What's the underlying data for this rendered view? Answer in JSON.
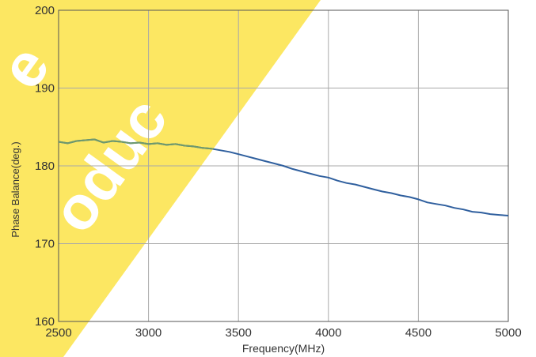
{
  "chart_data": {
    "type": "line",
    "title": "",
    "xlabel": "Frequency(MHz)",
    "ylabel": "Phase Balance(deg.)",
    "xlim": [
      2500,
      5000
    ],
    "ylim": [
      160,
      200
    ],
    "xticks": [
      2500,
      3000,
      3500,
      4000,
      4500,
      5000
    ],
    "yticks": [
      160,
      170,
      180,
      190,
      200
    ],
    "grid": true,
    "legend": "none",
    "series": [
      {
        "color": "#2f5f9e",
        "x": [
          2500,
          2550,
          2600,
          2650,
          2700,
          2750,
          2800,
          2850,
          2900,
          2950,
          3000,
          3050,
          3100,
          3150,
          3200,
          3250,
          3300,
          3350,
          3400,
          3450,
          3500,
          3550,
          3600,
          3650,
          3700,
          3750,
          3800,
          3850,
          3900,
          3950,
          4000,
          4050,
          4100,
          4150,
          4200,
          4250,
          4300,
          4350,
          4400,
          4450,
          4500,
          4550,
          4600,
          4650,
          4700,
          4750,
          4800,
          4850,
          4900,
          4950,
          5000
        ],
        "y": [
          183.1,
          182.9,
          183.2,
          183.3,
          183.4,
          183.0,
          183.2,
          183.1,
          182.9,
          183.0,
          182.8,
          182.9,
          182.7,
          182.8,
          182.6,
          182.5,
          182.3,
          182.2,
          182.0,
          181.8,
          181.5,
          181.2,
          180.9,
          180.6,
          180.3,
          180.0,
          179.6,
          179.3,
          179.0,
          178.7,
          178.5,
          178.1,
          177.8,
          177.6,
          177.3,
          177.0,
          176.7,
          176.5,
          176.2,
          176.0,
          175.7,
          175.3,
          175.1,
          174.9,
          174.6,
          174.4,
          174.1,
          174.0,
          173.8,
          173.7,
          173.6
        ]
      }
    ],
    "watermark": {
      "color": "#fce762",
      "lines": [
        "e",
        "oduc"
      ]
    }
  }
}
